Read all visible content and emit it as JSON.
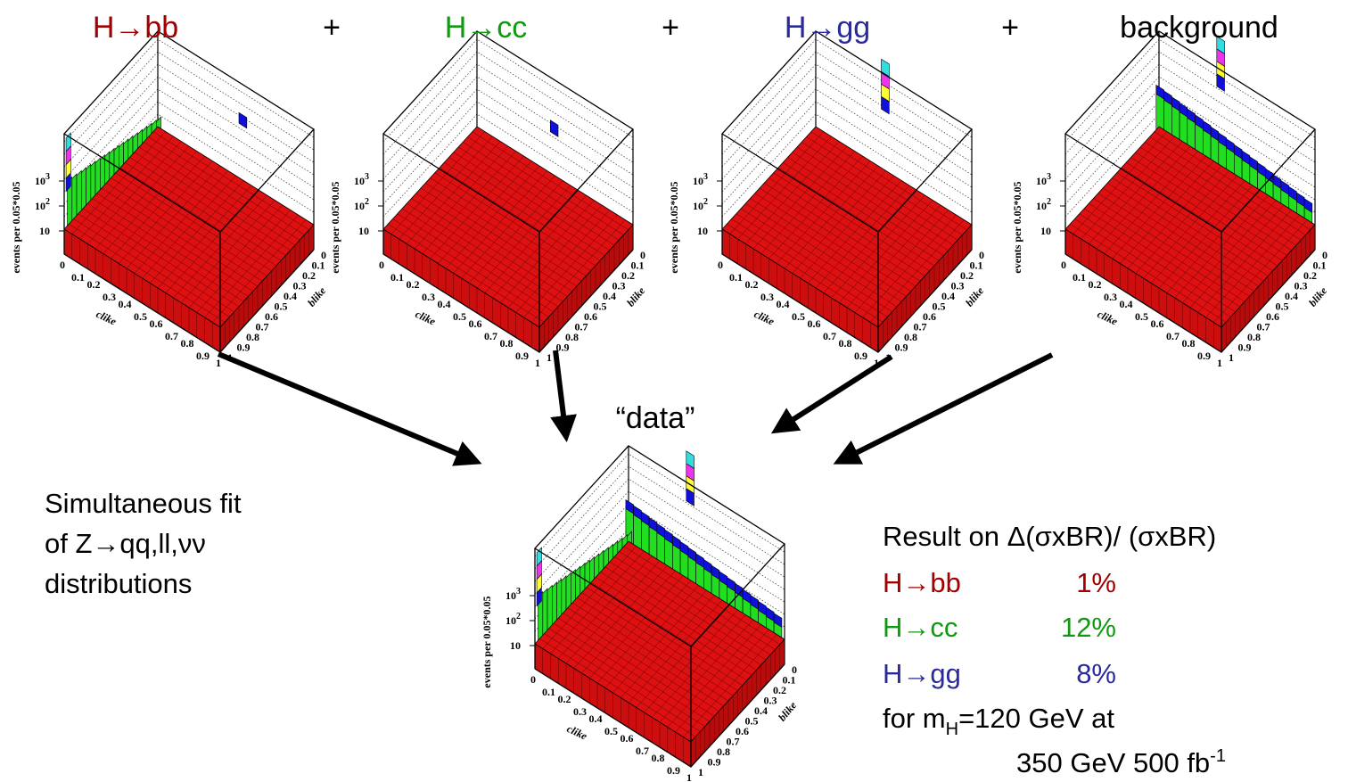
{
  "header": [
    "H→bb",
    "+",
    "H→cc",
    "+",
    "H→gg",
    "+",
    "background"
  ],
  "data_label": "“data”",
  "axes": {
    "z_label": "events per 0.05*0.05",
    "z_ticks": [
      {
        "base": "10",
        "exp": "3"
      },
      {
        "base": "10",
        "exp": "2"
      },
      {
        "base": "10"
      }
    ],
    "x_label": "clike",
    "y_label": "blike",
    "ticks": [
      "0",
      "0.1",
      "0.2",
      "0.3",
      "0.4",
      "0.5",
      "0.6",
      "0.7",
      "0.8",
      "0.9",
      "1"
    ]
  },
  "fit_note": [
    "Simultaneous fit",
    "of Z→qq,ll,νν",
    "distributions"
  ],
  "result": {
    "title": "Result on Δ(σxBR)/ (σxBR)",
    "rows": [
      {
        "channel": "H→bb",
        "value": "1%"
      },
      {
        "channel": "H→cc",
        "value": "12%"
      },
      {
        "channel": "H→gg",
        "value": "8%"
      }
    ],
    "footer": {
      "prefix": "for m",
      "sub": "H",
      "rest": "=120 GeV at",
      "line2": "350 GeV 500 fb",
      "sup": "-1"
    }
  }
}
